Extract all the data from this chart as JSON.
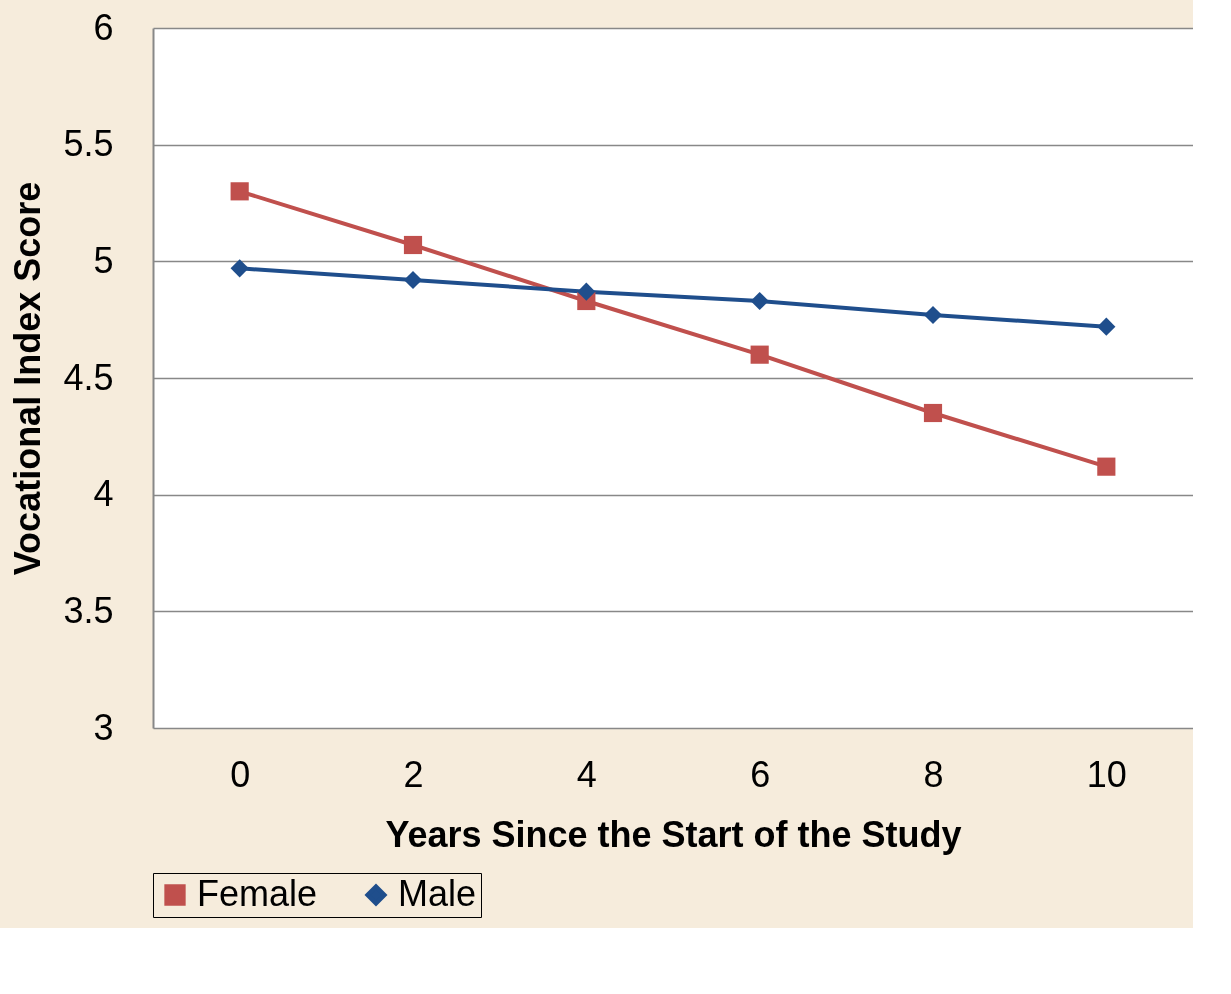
{
  "chart_data": {
    "type": "line",
    "xlabel": "Years Since the Start of the Study",
    "ylabel": "Vocational Index Score",
    "categories": [
      "0",
      "2",
      "4",
      "6",
      "8",
      "10"
    ],
    "series": [
      {
        "name": "Female",
        "color": "#c0504d",
        "marker": "square",
        "values": [
          5.3,
          5.07,
          4.83,
          4.6,
          4.35,
          4.12
        ]
      },
      {
        "name": "Male",
        "color": "#1f4e8c",
        "marker": "diamond",
        "values": [
          4.97,
          4.92,
          4.87,
          4.83,
          4.77,
          4.72
        ]
      }
    ],
    "ylim": [
      3,
      6
    ],
    "yticks": [
      3,
      3.5,
      4,
      4.5,
      5,
      5.5,
      6
    ],
    "grid": "y",
    "legend": "bottom",
    "line_style": "solid"
  }
}
